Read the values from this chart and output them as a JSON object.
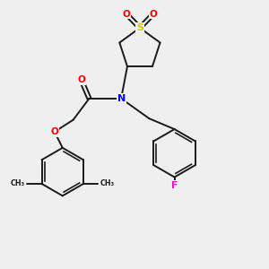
{
  "bg_color": "#efefef",
  "bond_color": "#1a1a1a",
  "atom_colors": {
    "O": "#ff0000",
    "N": "#0000ff",
    "S": "#cccc00",
    "F": "#ff00cc",
    "C": "#1a1a1a"
  }
}
